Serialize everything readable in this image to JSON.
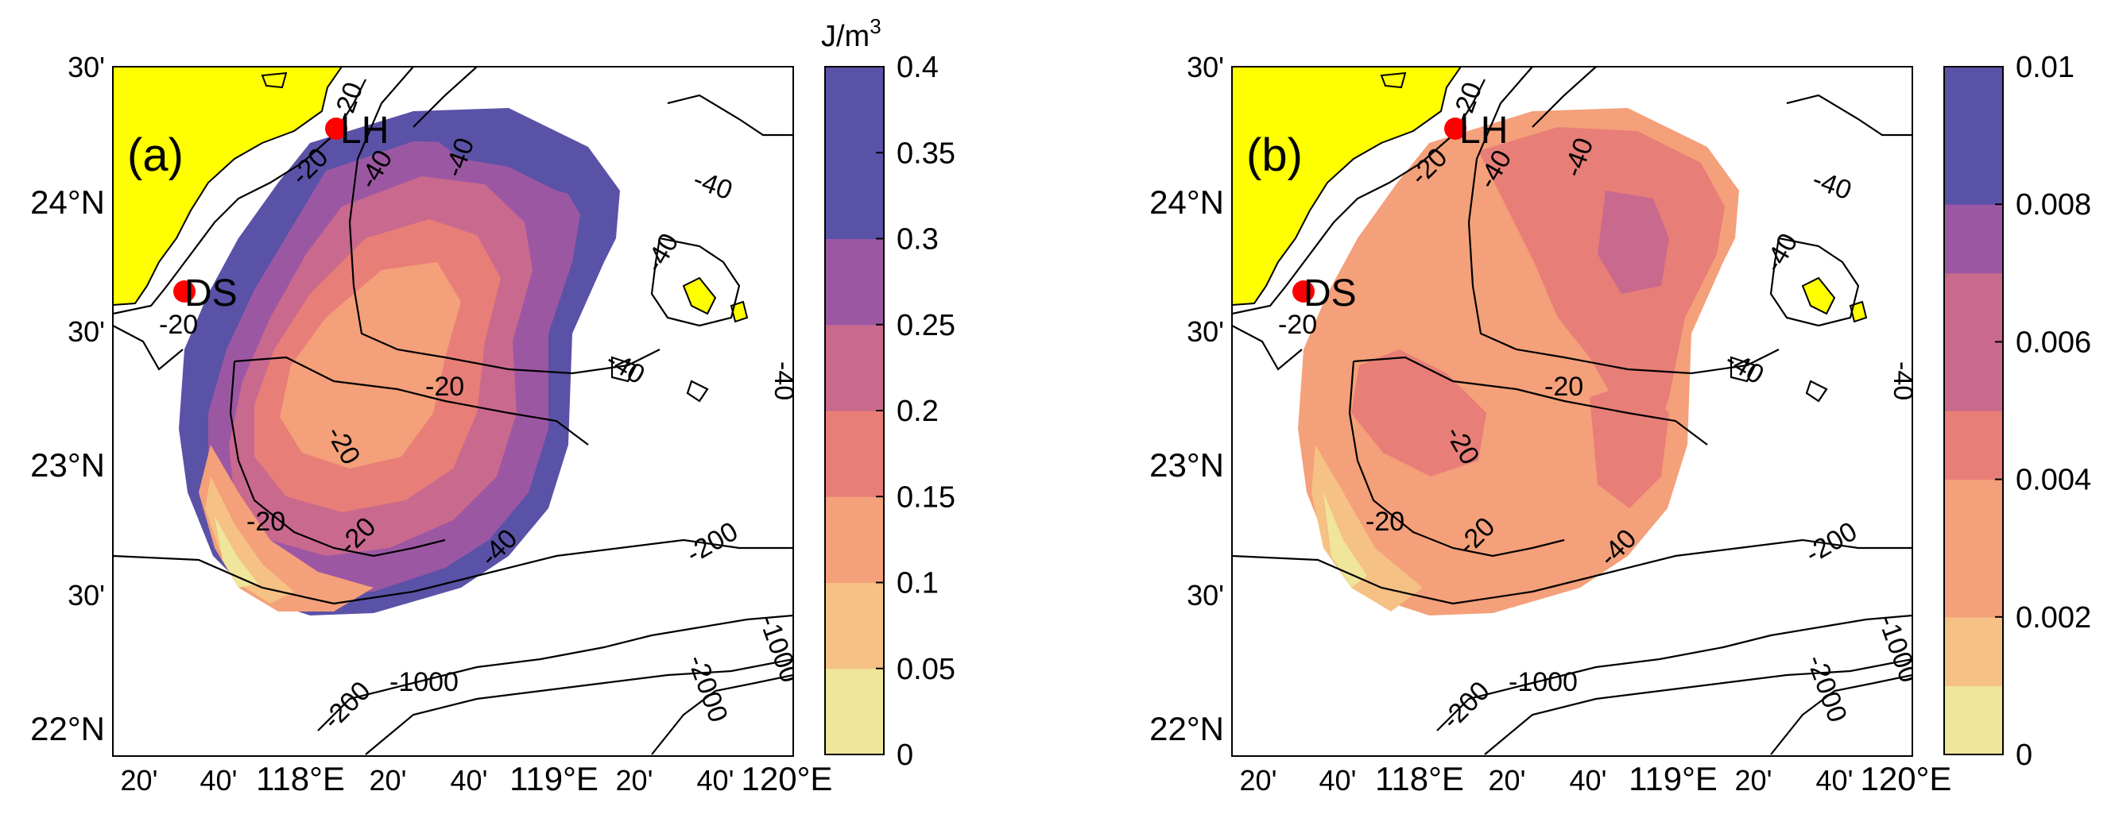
{
  "panel_a": {
    "label": "(a)",
    "colorbar": {
      "unit_label": "J/m",
      "unit_exp": "3",
      "ticks": [
        "0",
        "0.05",
        "0.1",
        "0.15",
        "0.2",
        "0.25",
        "0.3",
        "0.35",
        "0.4"
      ]
    }
  },
  "panel_b": {
    "label": "(b)",
    "colorbar": {
      "ticks": [
        "0",
        "0.002",
        "0.004",
        "0.006",
        "0.008",
        "0.01"
      ]
    }
  },
  "axes": {
    "lat_labels": [
      "30'",
      "24°N",
      "30'",
      "23°N",
      "30'",
      "22°N"
    ],
    "lon_labels": [
      "20'",
      "40'",
      "118°E",
      "20'",
      "40'",
      "119°E",
      "20'",
      "40'",
      "120°E"
    ]
  },
  "sites": {
    "lh": "LH",
    "ds": "DS"
  },
  "contour_labels": {
    "m20": "-20",
    "m40": "-40",
    "m200": "-200",
    "m1000": "-1000",
    "m2000": "-2000"
  },
  "colors": {
    "land": "#ffff00",
    "site_marker": "#ff0000",
    "scale": [
      "#efe59b",
      "#f5c184",
      "#f4a07a",
      "#e87e78",
      "#c9698e",
      "#9c57a3",
      "#5a52a7"
    ]
  }
}
